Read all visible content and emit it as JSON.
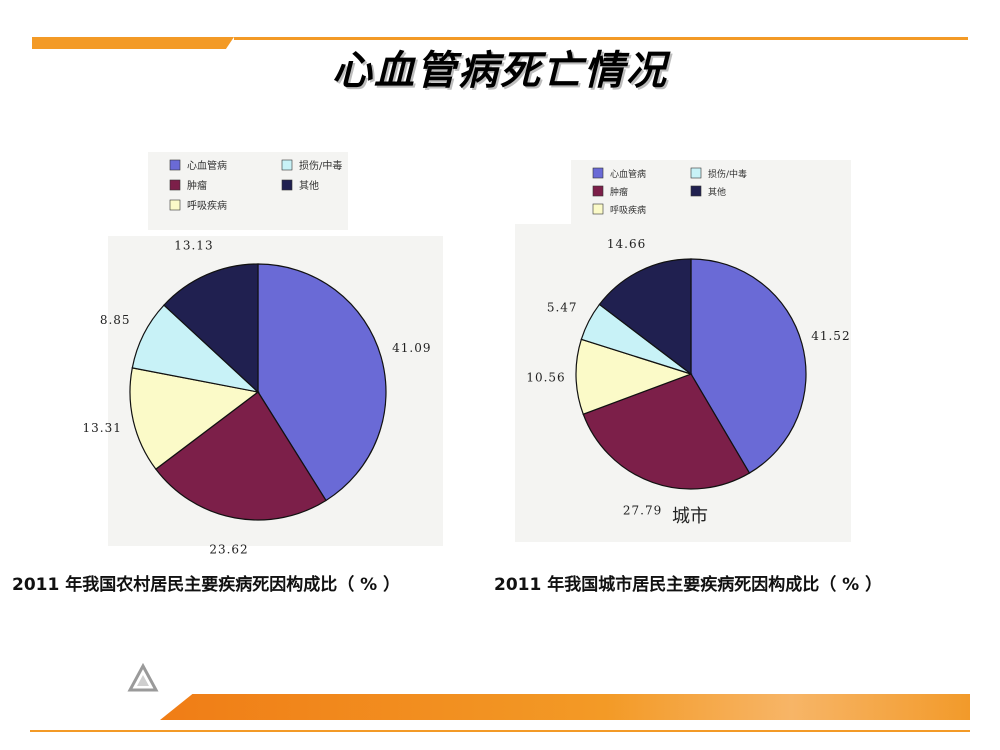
{
  "slide": {
    "title": "心血管病死亡情况"
  },
  "colors": {
    "accent": "#f39a26",
    "series": [
      "#6a6ad6",
      "#7c1f49",
      "#fbfac8",
      "#c8f2f7",
      "#202050"
    ]
  },
  "chart_data": [
    {
      "type": "pie",
      "legend": [
        "心血管病",
        "肿瘤",
        "呼吸疾病",
        "损伤/中毒",
        "其他"
      ],
      "legend_position": "top",
      "values": [
        41.09,
        23.62,
        13.31,
        8.85,
        13.13
      ],
      "value_labels": [
        "41.09",
        "23.62",
        "13.31",
        "8.85",
        "13.13"
      ],
      "caption": "2011 年我国农村居民主要疾病死因构成比（ % ）"
    },
    {
      "type": "pie",
      "legend": [
        "心血管病",
        "肿瘤",
        "呼吸疾病",
        "损伤/中毒",
        "其他"
      ],
      "legend_position": "top",
      "values": [
        41.52,
        27.79,
        10.56,
        5.47,
        14.66
      ],
      "value_labels": [
        "41.52",
        "27.79",
        "10.56",
        "5.47",
        "14.66"
      ],
      "inner_label": "城市",
      "caption": "2011 年我国城市居民主要疾病死因构成比（ % ）"
    }
  ]
}
